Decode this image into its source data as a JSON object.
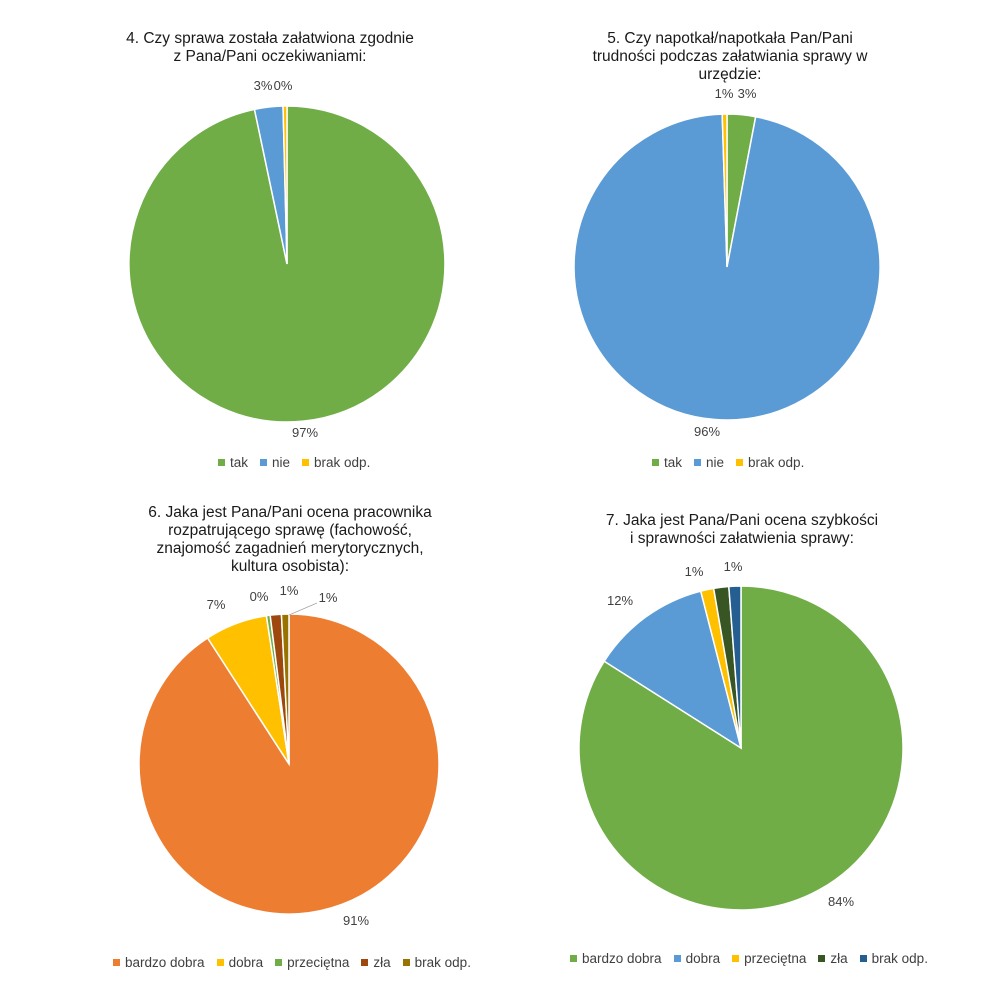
{
  "chart_data": [
    {
      "type": "pie",
      "title_lines": [
        "4. Czy sprawa została załatwiona zgodnie",
        "z Pana/Pani oczekiwaniami:"
      ],
      "categories": [
        "tak",
        "nie",
        "brak odp."
      ],
      "values": [
        96.7,
        2.9,
        0.4
      ],
      "labels": [
        "97%",
        "3%",
        "0%"
      ],
      "colors": [
        "#70AD47",
        "#5B9BD5",
        "#FFC000"
      ],
      "legend": "bottom"
    },
    {
      "type": "pie",
      "title_lines": [
        "5. Czy napotkał/napotkała Pan/Pani",
        "trudności podczas załatwiania sprawy w",
        "urzędzie:"
      ],
      "categories": [
        "tak",
        "nie",
        "brak odp."
      ],
      "values": [
        3.0,
        96.5,
        0.5
      ],
      "labels": [
        "3%",
        "96%",
        "1%"
      ],
      "colors": [
        "#70AD47",
        "#5B9BD5",
        "#FFC000"
      ],
      "legend": "bottom"
    },
    {
      "type": "pie",
      "title_lines": [
        "6. Jaka jest Pana/Pani ocena pracownika",
        "rozpatrującego sprawę (fachowość,",
        "znajomość zagadnień merytorycznych,",
        "kultura osobista):"
      ],
      "categories": [
        "bardzo dobra",
        "dobra",
        "przeciętna",
        "zła",
        "brak odp."
      ],
      "values": [
        90.6,
        6.7,
        0.4,
        1.2,
        0.8
      ],
      "labels": [
        "91%",
        "7%",
        "0%",
        "1%",
        "1%"
      ],
      "colors": [
        "#ED7D31",
        "#FFC000",
        "#70AD47",
        "#9E480E",
        "#997300"
      ],
      "legend": "bottom"
    },
    {
      "type": "pie",
      "title_lines": [
        "7. Jaka jest Pana/Pani ocena szybkości",
        "i sprawności załatwienia sprawy:"
      ],
      "categories": [
        "bardzo dobra",
        "dobra",
        "przeciętna",
        "zła",
        "brak odp."
      ],
      "values": [
        84.0,
        12.0,
        1.3,
        1.5,
        1.2
      ],
      "labels": [
        "84%",
        "12%",
        "1%",
        "",
        "1%"
      ],
      "colors": [
        "#70AD47",
        "#5B9BD5",
        "#FFC000",
        "#375623",
        "#255E91"
      ],
      "legend": "bottom"
    }
  ]
}
